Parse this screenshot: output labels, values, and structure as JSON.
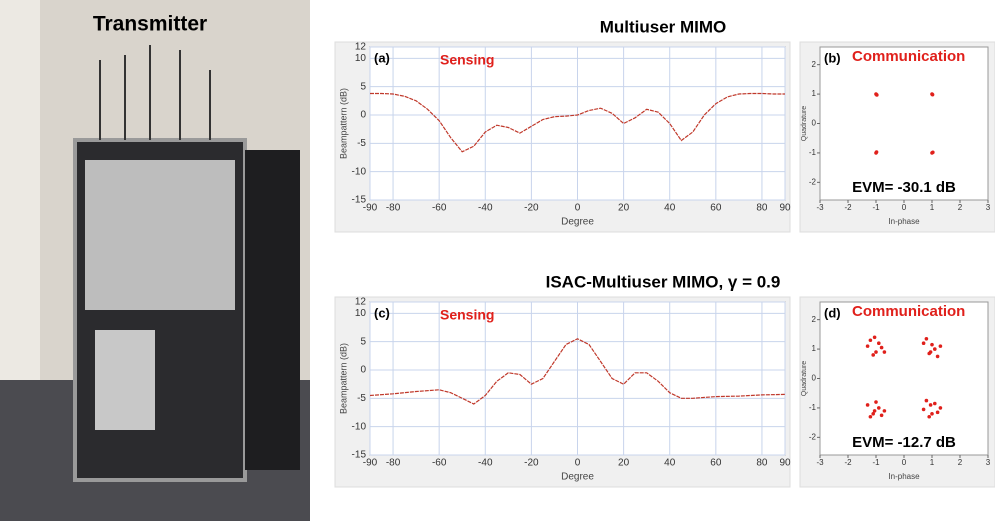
{
  "photo_label": "Transmitter",
  "row_titles": [
    "Multiuser MIMO",
    "ISAC-Multiuser MIMO, γ = 0.9"
  ],
  "chart_data": [
    {
      "type": "line",
      "label": "(a)",
      "annotation": "Sensing",
      "x_label": "Degree",
      "y_label": "Beampattern (dB)",
      "color": "#c0392b",
      "x": [
        -90,
        -85,
        -80,
        -75,
        -70,
        -65,
        -60,
        -55,
        -50,
        -45,
        -40,
        -35,
        -30,
        -25,
        -20,
        -15,
        -10,
        -5,
        0,
        5,
        10,
        15,
        20,
        25,
        30,
        35,
        40,
        45,
        50,
        55,
        60,
        65,
        70,
        75,
        80,
        85,
        90
      ],
      "values": [
        3.8,
        3.8,
        3.7,
        3.3,
        2.5,
        1,
        -1,
        -4,
        -6.5,
        -5.5,
        -3,
        -1.8,
        -2.2,
        -3.2,
        -2,
        -0.8,
        -0.3,
        -0.2,
        0,
        0.8,
        1.2,
        0.3,
        -1.5,
        -0.5,
        1,
        0.5,
        -1.5,
        -4.5,
        -3,
        0,
        2,
        3.2,
        3.7,
        3.8,
        3.8,
        3.7,
        3.7
      ],
      "xlim": [
        -90,
        90
      ],
      "xticks": [
        -90,
        -80,
        -60,
        -40,
        -20,
        0,
        20,
        40,
        60,
        80,
        90
      ],
      "ylim": [
        -15,
        12
      ],
      "yticks": [
        -15,
        -10,
        -5,
        0,
        5,
        10,
        12
      ],
      "grid": true
    },
    {
      "type": "scatter",
      "label": "(b)",
      "annotation": "Communication",
      "evm": "EVM= -30.1 dB",
      "x_label": "In-phase",
      "y_label": "Quadrature",
      "color": "#e0201b",
      "x": [
        -1,
        -0.97,
        1,
        1.02,
        -1,
        -0.98,
        1,
        1.03
      ],
      "values": [
        1,
        0.97,
        1,
        0.98,
        -1,
        -0.97,
        -1,
        -0.98
      ],
      "xlim": [
        -3,
        3
      ],
      "xticks": [
        -3,
        -2,
        -1,
        0,
        1,
        2,
        3
      ],
      "ylim": [
        -2.6,
        2.6
      ],
      "yticks": [
        -2,
        -1,
        0,
        1,
        2
      ],
      "grid": false
    },
    {
      "type": "line",
      "label": "(c)",
      "annotation": "Sensing",
      "x_label": "Degree",
      "y_label": "Beampattern (dB)",
      "color": "#c0392b",
      "x": [
        -90,
        -80,
        -70,
        -60,
        -55,
        -50,
        -45,
        -40,
        -35,
        -30,
        -25,
        -20,
        -15,
        -10,
        -5,
        0,
        5,
        10,
        15,
        20,
        25,
        30,
        35,
        40,
        45,
        50,
        60,
        70,
        80,
        90
      ],
      "values": [
        -4.5,
        -4.2,
        -3.8,
        -3.5,
        -4,
        -5,
        -6,
        -4.5,
        -2,
        -0.5,
        -0.8,
        -2.5,
        -1.5,
        1.5,
        4.5,
        5.5,
        4.5,
        1.5,
        -1.5,
        -2.5,
        -0.5,
        -0.5,
        -2,
        -4,
        -5,
        -5,
        -4.7,
        -4.6,
        -4.4,
        -4.3
      ],
      "xlim": [
        -90,
        90
      ],
      "xticks": [
        -90,
        -80,
        -60,
        -40,
        -20,
        0,
        20,
        40,
        60,
        80,
        90
      ],
      "ylim": [
        -15,
        12
      ],
      "yticks": [
        -15,
        -10,
        -5,
        0,
        5,
        10,
        12
      ],
      "grid": true
    },
    {
      "type": "scatter",
      "label": "(d)",
      "annotation": "Communication",
      "evm": "EVM= -12.7 dB",
      "x_label": "In-phase",
      "y_label": "Quadrature",
      "color": "#e0201b",
      "x": [
        -1.3,
        -1.1,
        -0.9,
        -0.7,
        -1.2,
        -1,
        -0.8,
        -1.05,
        0.7,
        0.9,
        1.1,
        1.3,
        0.8,
        1,
        1.2,
        0.95,
        -1.3,
        -1.1,
        -0.9,
        -0.7,
        -1.2,
        -1,
        -0.8,
        -1.05,
        0.7,
        0.9,
        1.1,
        1.3,
        0.8,
        1,
        1.2,
        0.95
      ],
      "values": [
        1.1,
        0.8,
        1.2,
        0.9,
        1.3,
        0.9,
        1.05,
        1.4,
        1.2,
        0.85,
        1,
        1.1,
        1.35,
        1.15,
        0.75,
        0.9,
        -0.9,
        -1.2,
        -1,
        -1.1,
        -1.3,
        -0.8,
        -1.25,
        -1.1,
        -1.05,
        -1.3,
        -0.85,
        -1,
        -0.75,
        -1.2,
        -1.15,
        -0.9
      ],
      "xlim": [
        -3,
        3
      ],
      "xticks": [
        -3,
        -2,
        -1,
        0,
        1,
        2,
        3
      ],
      "ylim": [
        -2.6,
        2.6
      ],
      "yticks": [
        -2,
        -1,
        0,
        1,
        2
      ],
      "grid": false
    }
  ]
}
